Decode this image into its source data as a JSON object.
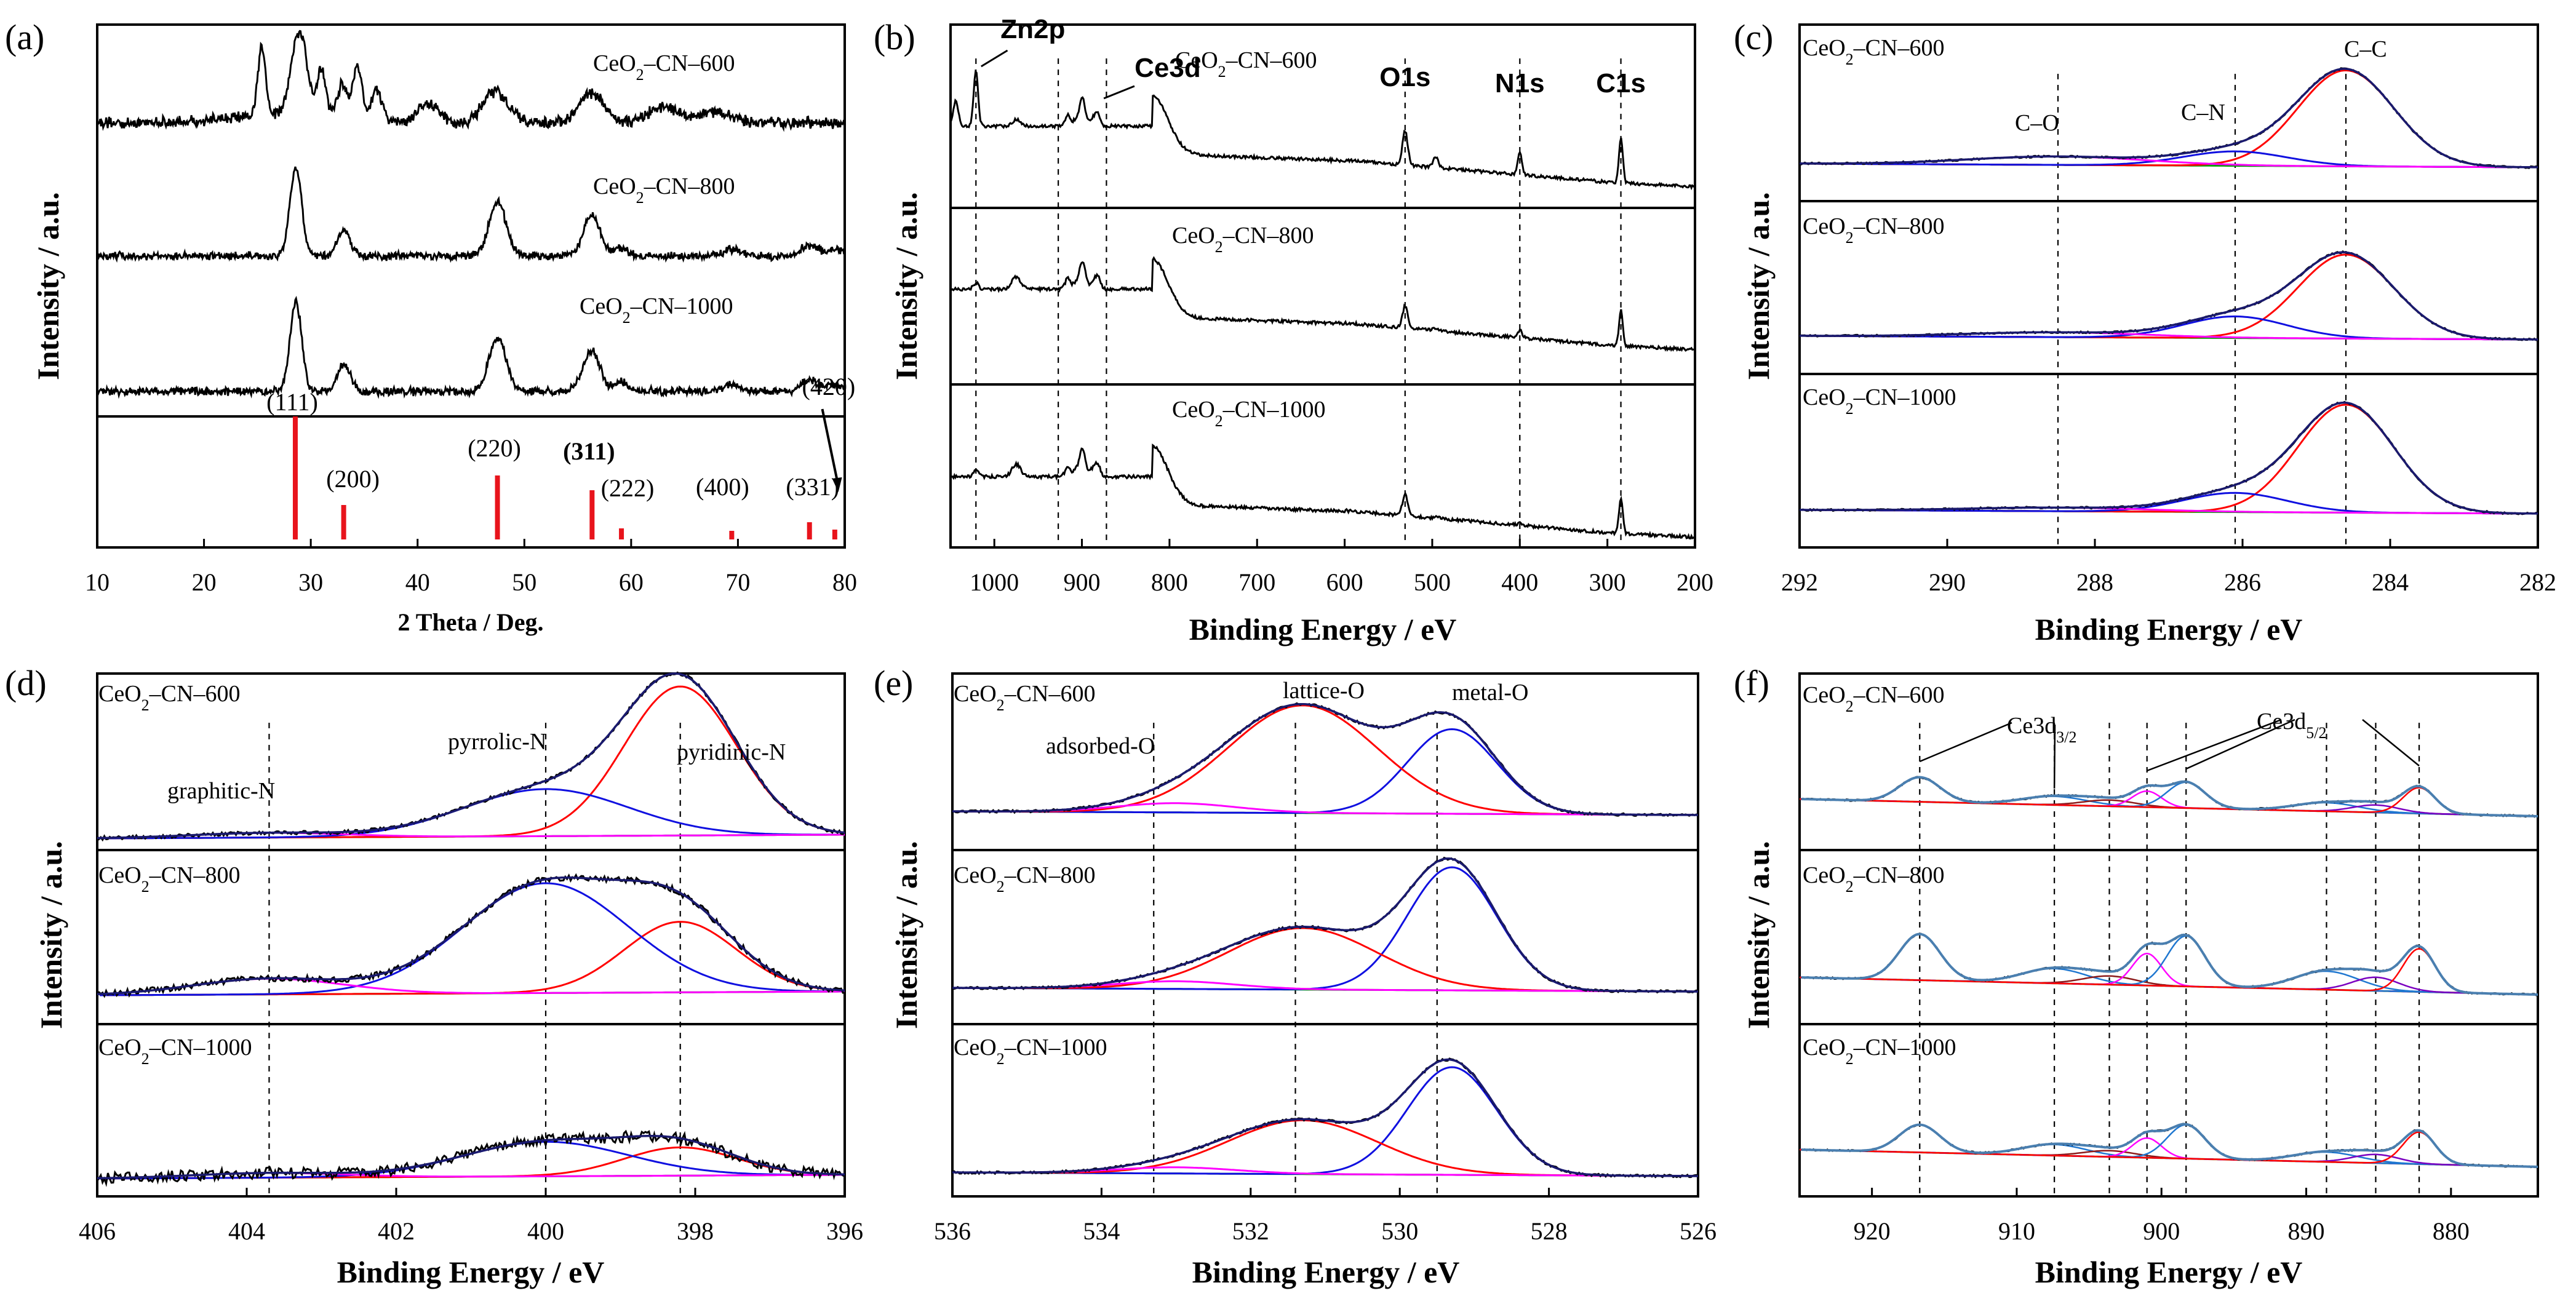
{
  "chart_data": [
    {
      "id": "a",
      "panel_label": "(a)",
      "type": "line",
      "xlabel": "2 Theta / Deg.",
      "ylabel": "Intensity / a.u.",
      "xlim": [
        10,
        80
      ],
      "xticks": [
        10,
        20,
        30,
        40,
        50,
        60,
        70,
        80
      ],
      "series": [
        {
          "name": "CeO2-CN-600",
          "label": "CeO",
          "sub": "2",
          "suffix": "–CN–600",
          "color": "#000000",
          "peaks": [
            [
              25.4,
              90,
              0.35
            ],
            [
              28.6,
              80,
              0.6
            ],
            [
              29.4,
              55,
              0.5
            ],
            [
              31.0,
              60,
              0.4
            ],
            [
              33.0,
              45,
              0.5
            ],
            [
              34.4,
              70,
              0.4
            ],
            [
              36.2,
              40,
              0.5
            ],
            [
              41.0,
              25,
              1
            ],
            [
              47.3,
              40,
              1.2
            ],
            [
              56.3,
              38,
              1.2
            ],
            [
              63,
              20,
              1.5
            ],
            [
              68,
              15,
              1.5
            ]
          ],
          "noise": 8
        },
        {
          "name": "CeO2-CN-800",
          "label": "CeO",
          "sub": "2",
          "suffix": "–CN–800",
          "color": "#000000",
          "peaks": [
            [
              28.6,
              100,
              0.55
            ],
            [
              33.1,
              30,
              0.6
            ],
            [
              47.5,
              60,
              0.8
            ],
            [
              56.3,
              45,
              0.8
            ],
            [
              59.1,
              10,
              0.6
            ],
            [
              69.4,
              8,
              0.8
            ],
            [
              76.7,
              12,
              0.8
            ],
            [
              79.1,
              8,
              0.8
            ]
          ],
          "noise": 5
        },
        {
          "name": "CeO2-CN-1000",
          "label": "CeO",
          "sub": "2",
          "suffix": "–CN–1000",
          "color": "#000000",
          "peaks": [
            [
              28.6,
              100,
              0.55
            ],
            [
              33.1,
              30,
              0.6
            ],
            [
              47.5,
              60,
              0.8
            ],
            [
              56.3,
              45,
              0.8
            ],
            [
              59.1,
              10,
              0.6
            ],
            [
              69.4,
              8,
              0.8
            ],
            [
              76.7,
              12,
              0.8
            ],
            [
              79.1,
              8,
              0.8
            ]
          ],
          "noise": 5
        }
      ],
      "reference_sticks": {
        "color": "#e8141c",
        "x": [
          28.55,
          33.08,
          47.48,
          56.34,
          59.09,
          69.42,
          76.7,
          79.07
        ],
        "heights": [
          100,
          28,
          52,
          40,
          9,
          7,
          14,
          8
        ],
        "labels": [
          "(111)",
          "(200)",
          "(220)",
          "(311)",
          "(222)",
          "(400)",
          "(331)",
          "(420)"
        ]
      }
    },
    {
      "id": "b",
      "panel_label": "(b)",
      "type": "line",
      "xlabel": "Binding Energy / eV",
      "ylabel": "Intensity / a.u.",
      "xlim": [
        1050,
        200
      ],
      "xticks": [
        1000,
        900,
        800,
        700,
        600,
        500,
        400,
        300,
        200
      ],
      "series": [
        {
          "name": "CeO2-CN-600",
          "label": "CeO",
          "sub": "2",
          "suffix": "–CN–600",
          "color": "#000000"
        },
        {
          "name": "CeO2-CN-800",
          "label": "CeO",
          "sub": "2",
          "suffix": "–CN–800",
          "color": "#000000"
        },
        {
          "name": "CeO2-CN-1000",
          "label": "CeO",
          "sub": "2",
          "suffix": "–CN–1000",
          "color": "#000000"
        }
      ],
      "peaks": [
        {
          "label": "Zn2p",
          "x": 1021
        },
        {
          "label": "Ce3d",
          "x": 882
        },
        {
          "label": "O1s",
          "x": 531
        },
        {
          "label": "N1s",
          "x": 400
        },
        {
          "label": "C1s",
          "x": 284.6
        }
      ],
      "reference_lines": [
        1021,
        927,
        872,
        531,
        400,
        284.6
      ]
    },
    {
      "id": "c",
      "panel_label": "(c)",
      "type": "line",
      "xlabel": "Binding Energy / eV",
      "ylabel": "Intensity / a.u.",
      "xlim": [
        292,
        282
      ],
      "xticks": [
        292,
        290,
        288,
        286,
        284,
        282
      ],
      "series_labels": [
        {
          "label": "CeO",
          "sub": "2",
          "suffix": "–CN–600"
        },
        {
          "label": "CeO",
          "sub": "2",
          "suffix": "–CN–800"
        },
        {
          "label": "CeO",
          "sub": "2",
          "suffix": "–CN–1000"
        }
      ],
      "components": [
        {
          "name": "C-C",
          "center": 284.6,
          "width": 0.65,
          "color": "#ff0000"
        },
        {
          "name": "C-N",
          "center": 286.1,
          "width": 0.7,
          "color": "#1010e0"
        },
        {
          "name": "C-O",
          "center": 288.5,
          "width": 1.2,
          "color": "#ff00ff"
        }
      ],
      "amplitudes": [
        [
          80,
          12,
          7
        ],
        [
          70,
          18,
          4
        ],
        [
          90,
          16,
          3
        ]
      ],
      "peak_labels": [
        "C–C",
        "C–N",
        "C–O"
      ],
      "reference_lines": [
        288.5,
        286.1,
        284.6
      ],
      "baseline_color": "#00a000",
      "envelope_color": "#1a1a6e"
    },
    {
      "id": "d",
      "panel_label": "(d)",
      "type": "line",
      "xlabel": "Binding Energy / eV",
      "ylabel": "Intensity / a.u.",
      "xlim": [
        406,
        396
      ],
      "xticks": [
        406,
        404,
        402,
        400,
        398,
        396
      ],
      "series_labels": [
        {
          "label": "CeO",
          "sub": "2",
          "suffix": "–CN–600"
        },
        {
          "label": "CeO",
          "sub": "2",
          "suffix": "–CN–800"
        },
        {
          "label": "CeO",
          "sub": "2",
          "suffix": "–CN–1000"
        }
      ],
      "components": [
        {
          "name": "pyridinic-N",
          "center": 398.2,
          "width": 0.75,
          "color": "#ff0000"
        },
        {
          "name": "pyrrolic-N",
          "center": 400.0,
          "width": 1.1,
          "color": "#1010e0"
        },
        {
          "name": "graphitic-N",
          "center": 403.7,
          "width": 1.0,
          "color": "#ff00ff"
        }
      ],
      "amplitudes": [
        [
          95,
          30,
          3
        ],
        [
          45,
          70,
          10
        ],
        [
          18,
          22,
          3
        ]
      ],
      "peak_labels": [
        "pyridinic-N",
        "pyrrolic-N",
        "graphitic-N"
      ],
      "reference_lines": [
        403.7,
        400.0,
        398.2
      ],
      "baseline_color": "#00a000",
      "envelope_color": "#1a1a6e"
    },
    {
      "id": "e",
      "panel_label": "(e)",
      "type": "line",
      "xlabel": "Binding Energy / eV",
      "ylabel": "Intensity / a.u.",
      "xlim": [
        536,
        526
      ],
      "xticks": [
        536,
        534,
        532,
        530,
        528,
        526
      ],
      "series_labels": [
        {
          "label": "CeO",
          "sub": "2",
          "suffix": "–CN–600"
        },
        {
          "label": "CeO",
          "sub": "2",
          "suffix": "–CN–800"
        },
        {
          "label": "CeO",
          "sub": "2",
          "suffix": "–CN–1000"
        }
      ],
      "components": [
        {
          "name": "metal-O",
          "center": 529.3,
          "width": 0.6,
          "color": "#1010e0"
        },
        {
          "name": "lattice-O",
          "center": 531.3,
          "width": 1.0,
          "color": "#ff0000"
        },
        {
          "name": "adsorbed-O",
          "center": 533.0,
          "width": 0.8,
          "color": "#ff00ff"
        }
      ],
      "amplitudes": [
        [
          55,
          70,
          6
        ],
        [
          80,
          40,
          5
        ],
        [
          70,
          35,
          4
        ]
      ],
      "peak_labels": [
        "metal-O",
        "lattice-O",
        "adsorbed-O"
      ],
      "reference_lines": [
        533.3,
        531.4,
        529.5
      ],
      "baseline_color": "#00a000",
      "envelope_color": "#1a1a6e"
    },
    {
      "id": "f",
      "panel_label": "(f)",
      "type": "line",
      "xlabel": "Binding Energy / eV",
      "ylabel": "Intensity / a.u.",
      "xlim": [
        925,
        874
      ],
      "xticks": [
        920,
        910,
        900,
        890,
        880
      ],
      "series_labels": [
        {
          "label": "CeO",
          "sub": "2",
          "suffix": "–CN–600"
        },
        {
          "label": "CeO",
          "sub": "2",
          "suffix": "–CN–800"
        },
        {
          "label": "CeO",
          "sub": "2",
          "suffix": "–CN–1000"
        }
      ],
      "peak_positions": [
        916.7,
        907.4,
        903.6,
        901.0,
        898.3,
        888.6,
        885.2,
        882.2
      ],
      "component_colors": [
        "#1f77d0",
        "#1f77d0",
        "#8b1a1a",
        "#ff00ff",
        "#1f77d0",
        "#1f77d0",
        "#7a00c0",
        "#ff0000"
      ],
      "peak_labels": [
        {
          "text": "Ce3d",
          "sub": "3/2"
        },
        {
          "text": "Ce3d",
          "sub": "5/2"
        }
      ],
      "reference_lines": [
        916.7,
        907.4,
        903.6,
        901.0,
        898.3,
        888.6,
        885.2,
        882.2
      ],
      "baseline_color": "#8a7a1a",
      "envelope_color": "#4a7fb0"
    }
  ]
}
